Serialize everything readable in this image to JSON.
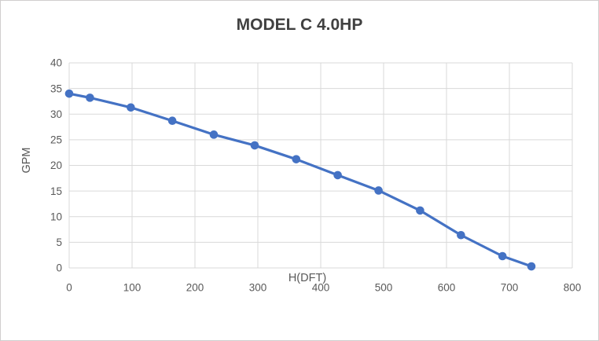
{
  "frame": {
    "background": "#ffffff",
    "border_color": "#d0cece"
  },
  "chart_data": {
    "type": "line",
    "title": "MODEL C 4.0HP",
    "xlabel": "H(DFT)",
    "ylabel": "GPM",
    "x": [
      0,
      33,
      98,
      164,
      230,
      295,
      361,
      427,
      492,
      558,
      623,
      689,
      735
    ],
    "values": [
      34,
      33.2,
      31.3,
      28.7,
      26,
      23.9,
      21.2,
      18.1,
      15.1,
      11.2,
      6.4,
      2.3,
      0.3
    ],
    "xlim": [
      0,
      800
    ],
    "ylim": [
      0,
      40
    ],
    "xticks": [
      0,
      100,
      200,
      300,
      400,
      500,
      600,
      700,
      800
    ],
    "yticks": [
      0,
      5,
      10,
      15,
      20,
      25,
      30,
      35,
      40
    ],
    "grid": true,
    "legend": "none",
    "marker": "circle",
    "colors": {
      "series": "#4472c4",
      "gridline": "#d9d9d9",
      "tick_text": "#595959",
      "axis_title_text": "#595959",
      "title_text": "#404040"
    }
  }
}
